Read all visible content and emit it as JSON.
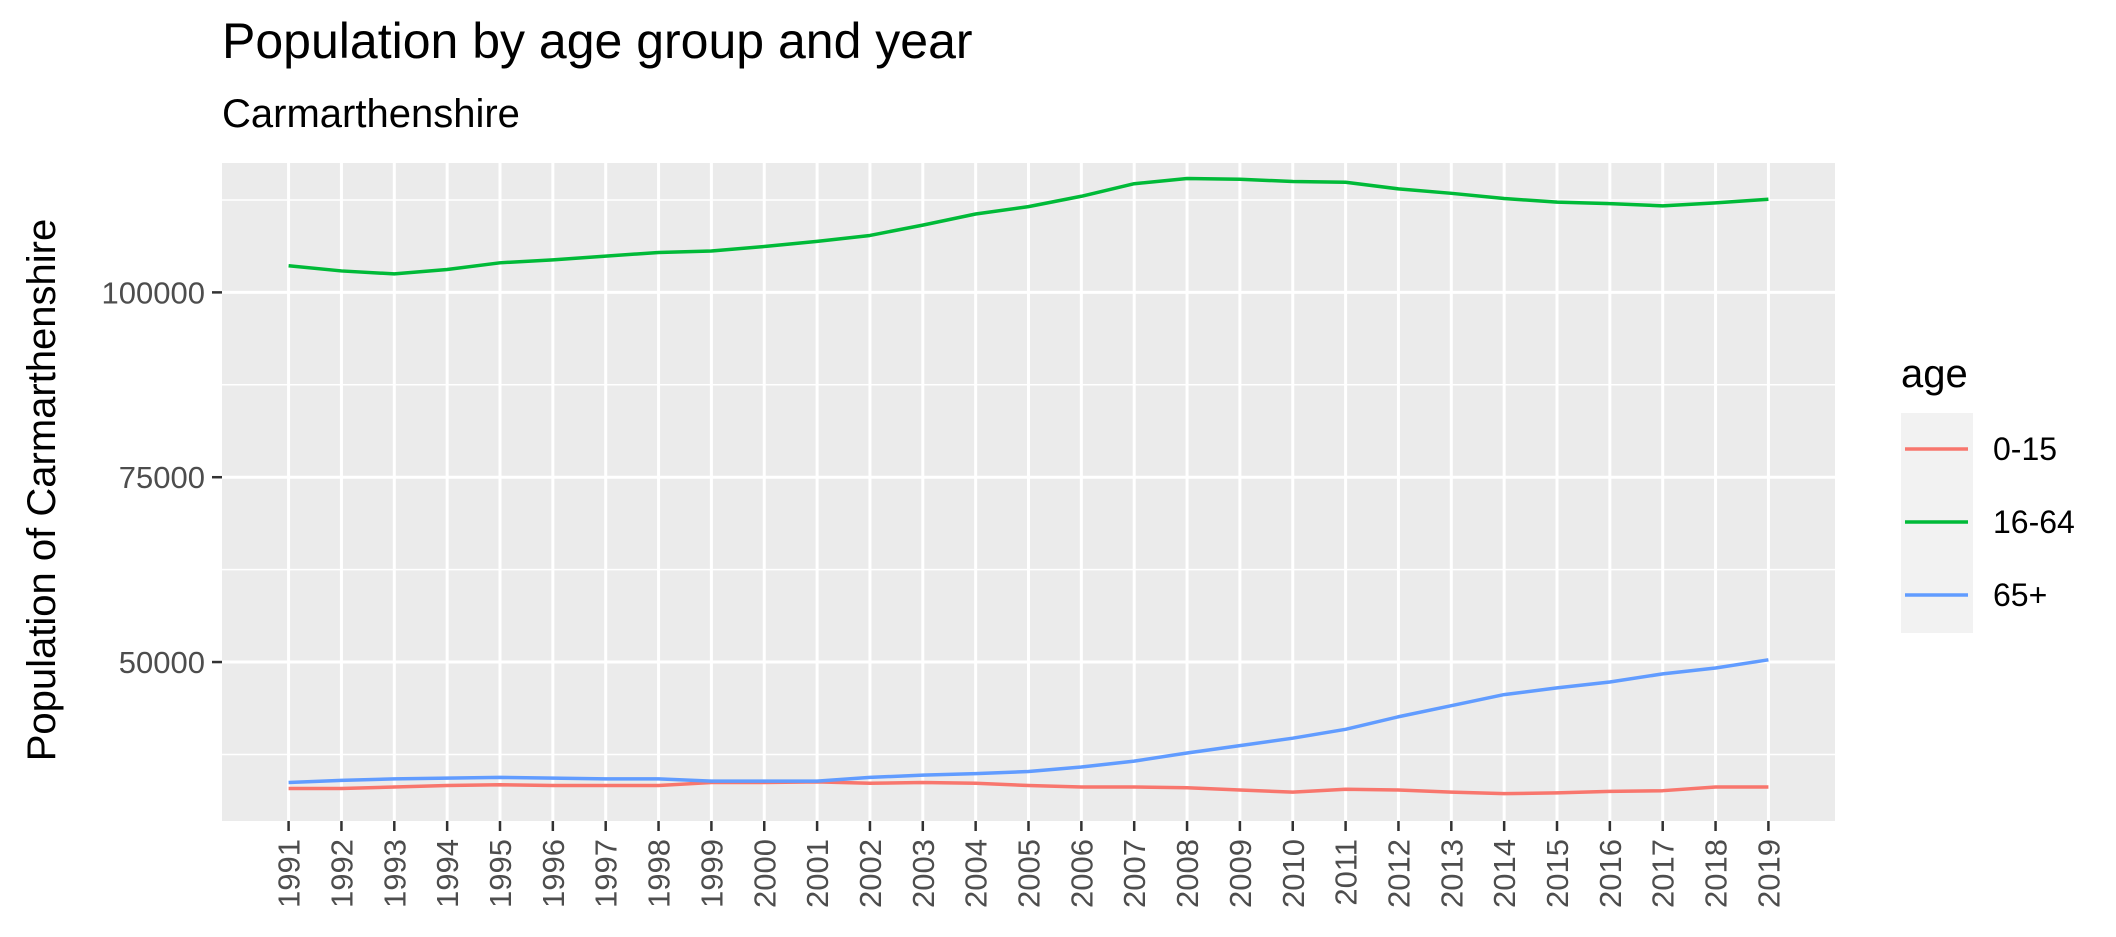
{
  "chart_data": {
    "type": "line",
    "title": "Population by age group and year",
    "subtitle": "Carmarthenshire",
    "xlabel": "",
    "ylabel": "Population of Carmarthenshire",
    "x": [
      1991,
      1992,
      1993,
      1994,
      1995,
      1996,
      1997,
      1998,
      1999,
      2000,
      2001,
      2002,
      2003,
      2004,
      2005,
      2006,
      2007,
      2008,
      2009,
      2010,
      2011,
      2012,
      2013,
      2014,
      2015,
      2016,
      2017,
      2018,
      2019
    ],
    "x_tick_labels": [
      "1991",
      "1992",
      "1993",
      "1994",
      "1995",
      "1996",
      "1997",
      "1998",
      "1999",
      "2000",
      "2001",
      "2002",
      "2003",
      "2004",
      "2005",
      "2006",
      "2007",
      "2008",
      "2009",
      "2010",
      "2011",
      "2012",
      "2013",
      "2014",
      "2015",
      "2016",
      "2017",
      "2018",
      "2019"
    ],
    "y_ticks": [
      50000,
      75000,
      100000
    ],
    "y_tick_labels": [
      "50000",
      "75000",
      "100000"
    ],
    "ylim": [
      28500,
      117500
    ],
    "grid": true,
    "legend_title": "age",
    "legend_position": "right",
    "series": [
      {
        "name": "0-15",
        "color": "#F8766D",
        "values": [
          32900,
          32900,
          33100,
          33300,
          33400,
          33300,
          33300,
          33300,
          33700,
          33700,
          33800,
          33600,
          33700,
          33600,
          33300,
          33100,
          33100,
          33000,
          32700,
          32400,
          32800,
          32700,
          32400,
          32200,
          32300,
          32500,
          32600,
          33100,
          33100
        ]
      },
      {
        "name": "16-64",
        "color": "#00BA38",
        "values": [
          103600,
          102900,
          102500,
          103100,
          104000,
          104400,
          104900,
          105400,
          105600,
          106200,
          106900,
          107700,
          109100,
          110600,
          111600,
          113000,
          114700,
          115400,
          115300,
          115000,
          114900,
          114000,
          113400,
          112700,
          112200,
          112000,
          111700,
          112100,
          112600
        ]
      },
      {
        "name": "65+",
        "color": "#619CFF",
        "values": [
          33700,
          34000,
          34200,
          34300,
          34400,
          34300,
          34200,
          34200,
          33900,
          33900,
          33900,
          34400,
          34700,
          34900,
          35200,
          35800,
          36600,
          37700,
          38700,
          39700,
          40900,
          42600,
          44100,
          45600,
          46500,
          47300,
          48400,
          49200,
          50300
        ]
      }
    ]
  }
}
